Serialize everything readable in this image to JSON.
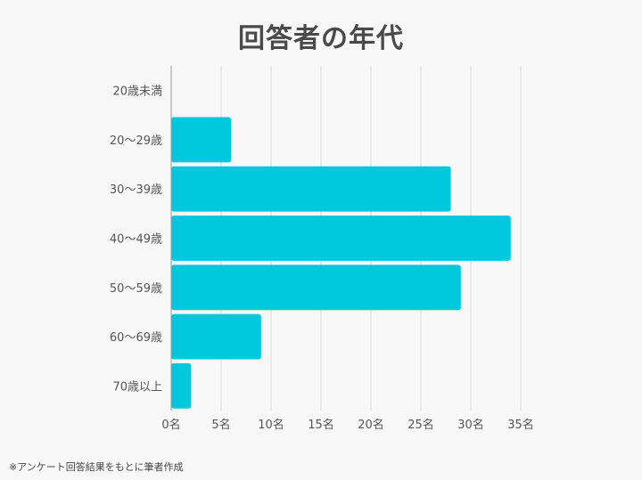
{
  "chart_data": {
    "type": "bar",
    "orientation": "horizontal",
    "title": "回答者の年代",
    "categories": [
      "20歳未満",
      "20〜29歳",
      "30〜39歳",
      "40〜49歳",
      "50〜59歳",
      "60〜69歳",
      "70歳以上"
    ],
    "values": [
      0,
      6,
      28,
      34,
      29,
      9,
      2
    ],
    "xlim": [
      0,
      35
    ],
    "xticks": [
      "0名",
      "5名",
      "10名",
      "15名",
      "20名",
      "25名",
      "30名",
      "35名"
    ],
    "xtick_values": [
      0,
      5,
      10,
      15,
      20,
      25,
      30,
      35
    ],
    "grid": true,
    "bar_color": "#00c8dd"
  },
  "footnote": "※アンケート回答結果をもとに筆者作成"
}
